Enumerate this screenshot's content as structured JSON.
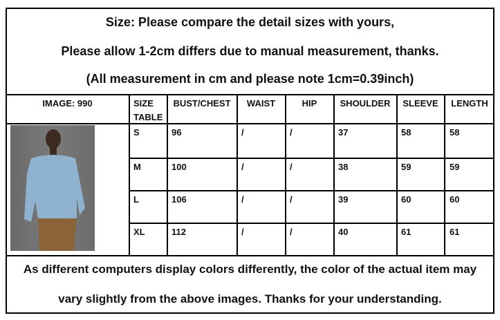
{
  "header": {
    "line1": "Size: Please compare the detail sizes with yours,",
    "line2": "Please allow 1-2cm differs due to manual measurement, thanks.",
    "line3": "(All measurement in cm and please note 1cm=0.39inch)"
  },
  "table": {
    "columns": [
      "IMAGE: 990",
      "SIZE TABLE",
      "BUST/CHEST",
      "WAIST",
      "HIP",
      "SHOULDER",
      "SLEEVE",
      "LENGTH"
    ],
    "rows": [
      [
        "S",
        "96",
        "/",
        "/",
        "37",
        "58",
        "58"
      ],
      [
        "M",
        "100",
        "/",
        "/",
        "38",
        "59",
        "59"
      ],
      [
        "L",
        "106",
        "/",
        "/",
        "39",
        "60",
        "60"
      ],
      [
        "XL",
        "112",
        "/",
        "/",
        "40",
        "61",
        "61"
      ]
    ]
  },
  "footer": {
    "line1": "As different computers display colors differently, the color of the actual item may",
    "line2": "vary slightly from the above images. Thanks for your understanding."
  },
  "product_image": {
    "shirt_color": "#8fb3cf",
    "pants_color": "#8a6338"
  }
}
